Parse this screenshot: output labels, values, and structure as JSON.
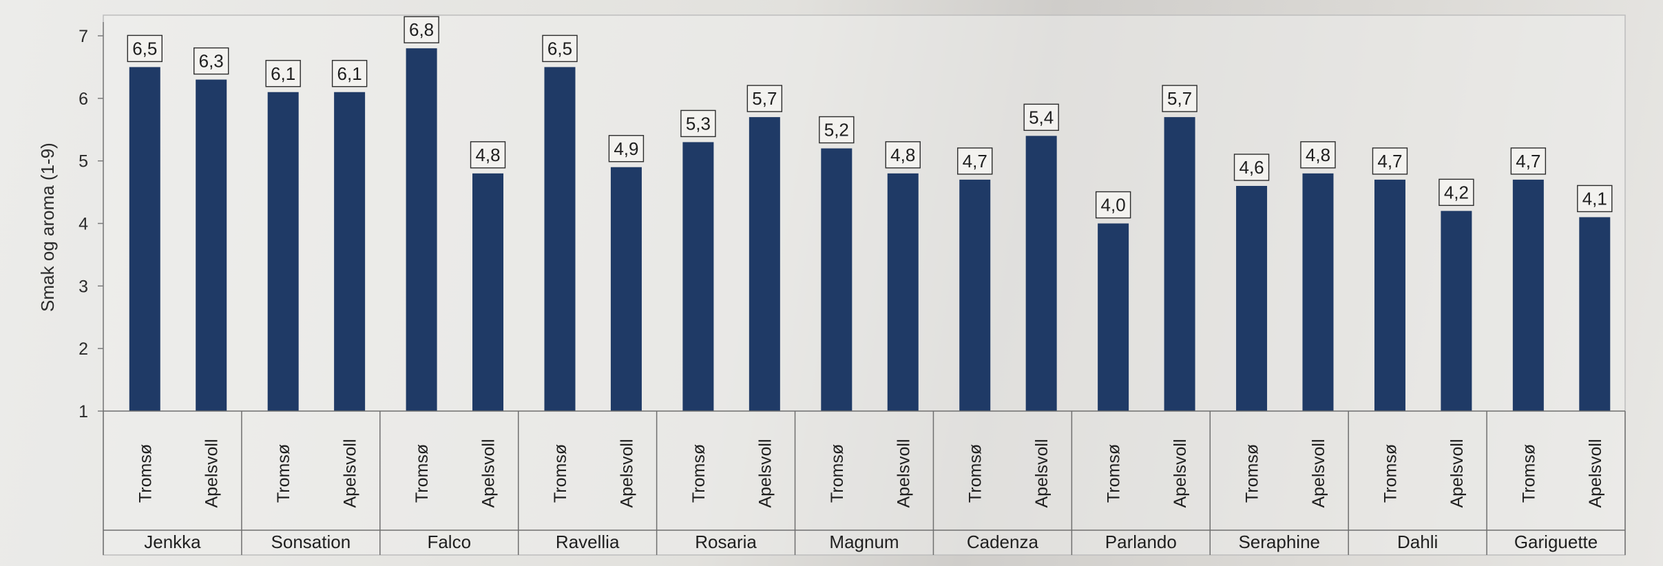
{
  "chart_data": {
    "type": "bar",
    "ylabel": "Smak og aroma (1-9)",
    "ylim": [
      1,
      7
    ],
    "yticks": [
      1,
      2,
      3,
      4,
      5,
      6,
      7
    ],
    "grid": false,
    "bar_color": "#1f3a66",
    "groups": [
      "Jenkka",
      "Sonsation",
      "Falco",
      "Ravellia",
      "Rosaria",
      "Magnum",
      "Cadenza",
      "Parlando",
      "Seraphine",
      "Dahli",
      "Gariguette"
    ],
    "sub_categories": [
      "Tromsø",
      "Apelsvoll"
    ],
    "bars": [
      {
        "group": "Jenkka",
        "location": "Tromsø",
        "value": 6.5,
        "label": "6,5"
      },
      {
        "group": "Jenkka",
        "location": "Apelsvoll",
        "value": 6.3,
        "label": "6,3"
      },
      {
        "group": "Sonsation",
        "location": "Tromsø",
        "value": 6.1,
        "label": "6,1"
      },
      {
        "group": "Sonsation",
        "location": "Apelsvoll",
        "value": 6.1,
        "label": "6,1"
      },
      {
        "group": "Falco",
        "location": "Tromsø",
        "value": 6.8,
        "label": "6,8"
      },
      {
        "group": "Falco",
        "location": "Apelsvoll",
        "value": 4.8,
        "label": "4,8"
      },
      {
        "group": "Ravellia",
        "location": "Tromsø",
        "value": 6.5,
        "label": "6,5"
      },
      {
        "group": "Ravellia",
        "location": "Apelsvoll",
        "value": 4.9,
        "label": "4,9"
      },
      {
        "group": "Rosaria",
        "location": "Tromsø",
        "value": 5.3,
        "label": "5,3"
      },
      {
        "group": "Rosaria",
        "location": "Apelsvoll",
        "value": 5.7,
        "label": "5,7"
      },
      {
        "group": "Magnum",
        "location": "Tromsø",
        "value": 5.2,
        "label": "5,2"
      },
      {
        "group": "Magnum",
        "location": "Apelsvoll",
        "value": 4.8,
        "label": "4,8"
      },
      {
        "group": "Cadenza",
        "location": "Tromsø",
        "value": 4.7,
        "label": "4,7"
      },
      {
        "group": "Cadenza",
        "location": "Apelsvoll",
        "value": 5.4,
        "label": "5,4"
      },
      {
        "group": "Parlando",
        "location": "Tromsø",
        "value": 4.0,
        "label": "4,0"
      },
      {
        "group": "Parlando",
        "location": "Apelsvoll",
        "value": 5.7,
        "label": "5,7"
      },
      {
        "group": "Seraphine",
        "location": "Tromsø",
        "value": 4.6,
        "label": "4,6"
      },
      {
        "group": "Seraphine",
        "location": "Apelsvoll",
        "value": 4.8,
        "label": "4,8"
      },
      {
        "group": "Dahli",
        "location": "Tromsø",
        "value": 4.7,
        "label": "4,7"
      },
      {
        "group": "Dahli",
        "location": "Apelsvoll",
        "value": 4.2,
        "label": "4,2"
      },
      {
        "group": "Gariguette",
        "location": "Tromsø",
        "value": 4.7,
        "label": "4,7"
      },
      {
        "group": "Gariguette",
        "location": "Apelsvoll",
        "value": 4.1,
        "label": "4,1"
      }
    ]
  }
}
